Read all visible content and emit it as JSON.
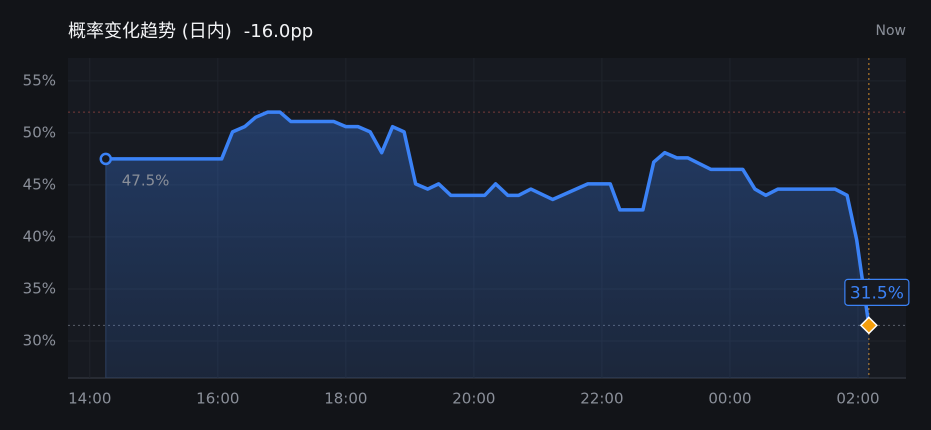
{
  "chart_data": {
    "type": "line",
    "title": "概率变化趋势 (日内)",
    "change": "-16.0pp",
    "now_label": "Now",
    "x": [
      14.25,
      16.06,
      16.23,
      16.42,
      16.59,
      16.78,
      16.97,
      17.14,
      17.81,
      18.0,
      18.19,
      18.38,
      18.56,
      18.73,
      18.91,
      19.09,
      19.28,
      19.45,
      19.64,
      20.17,
      20.34,
      20.53,
      20.7,
      20.89,
      21.23,
      21.78,
      22.13,
      22.28,
      22.64,
      22.81,
      22.98,
      23.17,
      23.34,
      23.7,
      24.2,
      24.39,
      24.56,
      24.75,
      25.64,
      25.83,
      25.98,
      26.17
    ],
    "series": [
      {
        "color": "#3b82f6",
        "values": [
          47.5,
          47.5,
          50.1,
          50.6,
          51.5,
          52.0,
          52.0,
          51.1,
          51.1,
          50.6,
          50.6,
          50.1,
          48.1,
          50.6,
          50.1,
          45.1,
          44.6,
          45.1,
          44.0,
          44.0,
          45.1,
          44.0,
          44.0,
          44.6,
          43.6,
          45.1,
          45.1,
          42.6,
          42.6,
          47.2,
          48.1,
          47.6,
          47.6,
          46.5,
          46.5,
          44.6,
          44.0,
          44.6,
          44.6,
          44.0,
          39.7,
          31.5
        ],
        "value_labels": [
          "47.5%",
          null,
          null,
          null,
          null,
          null,
          null,
          null,
          null,
          null,
          null,
          null,
          null,
          null,
          null,
          null,
          null,
          null,
          null,
          null,
          null,
          null,
          null,
          null,
          null,
          null,
          null,
          null,
          null,
          null,
          null,
          null,
          null,
          null,
          null,
          null,
          null,
          null,
          null,
          null,
          null,
          "31.5%"
        ]
      }
    ],
    "high_line": 52.0,
    "xlim": [
      13.66,
      26.75
    ],
    "xticks": [
      {
        "value": 14,
        "label": "14:00"
      },
      {
        "value": 16,
        "label": "16:00"
      },
      {
        "value": 18,
        "label": "18:00"
      },
      {
        "value": 20,
        "label": "20:00"
      },
      {
        "value": 22,
        "label": "22:00"
      },
      {
        "value": 24,
        "label": "00:00"
      },
      {
        "value": 26,
        "label": "02:00"
      }
    ],
    "ylim": [
      26.44,
      57.2
    ],
    "yticks": [
      {
        "value": 30,
        "label": "30%"
      },
      {
        "value": 35,
        "label": "35%"
      },
      {
        "value": 40,
        "label": "40%"
      },
      {
        "value": 45,
        "label": "45%"
      },
      {
        "value": 50,
        "label": "50%"
      },
      {
        "value": 55,
        "label": "55%"
      }
    ],
    "grid": true
  }
}
